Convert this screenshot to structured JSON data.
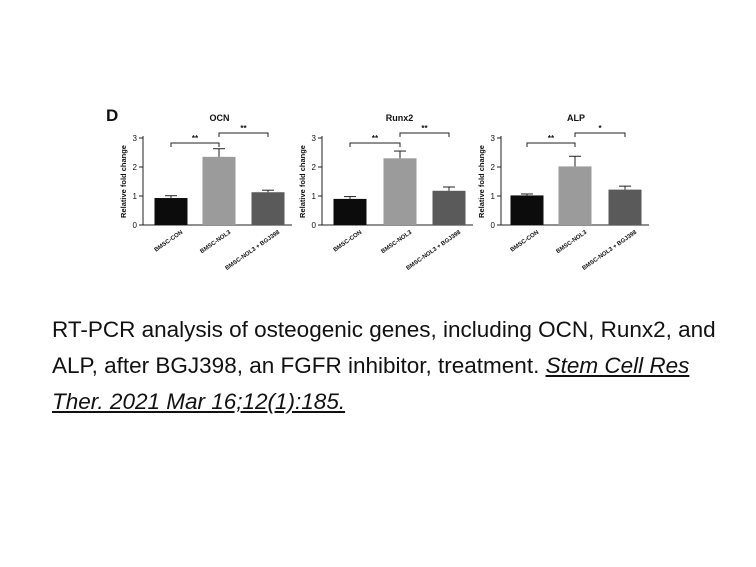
{
  "panel_letter": "D",
  "chart_data": [
    {
      "type": "bar",
      "title": "OCN",
      "ylabel": "Relative  fold change",
      "ylim": [
        0,
        3
      ],
      "yticks": [
        0,
        1,
        2,
        3
      ],
      "categories": [
        "BMSC-CON",
        "BMSC-NOL3",
        "BMSC-NOL3 + BGJ398"
      ],
      "values": [
        0.93,
        2.35,
        1.13
      ],
      "errors": [
        0.08,
        0.28,
        0.07
      ],
      "colors": [
        "#0c0c0c",
        "#9b9b9b",
        "#5a5a5a"
      ],
      "significance": [
        {
          "from": 0,
          "to": 1,
          "label": "**"
        },
        {
          "from": 1,
          "to": 2,
          "label": "**"
        }
      ]
    },
    {
      "type": "bar",
      "title": "Runx2",
      "ylabel": "Relative  fold change",
      "ylim": [
        0,
        3
      ],
      "yticks": [
        0,
        1,
        2,
        3
      ],
      "categories": [
        "BMSC-CON",
        "BMSC-NOL3",
        "BMSC-NOL3 + BGJ398"
      ],
      "values": [
        0.9,
        2.3,
        1.18
      ],
      "errors": [
        0.08,
        0.25,
        0.13
      ],
      "colors": [
        "#0c0c0c",
        "#9b9b9b",
        "#5a5a5a"
      ],
      "significance": [
        {
          "from": 0,
          "to": 1,
          "label": "**"
        },
        {
          "from": 1,
          "to": 2,
          "label": "**"
        }
      ]
    },
    {
      "type": "bar",
      "title": "ALP",
      "ylabel": "Relative  fold change",
      "ylim": [
        0,
        3
      ],
      "yticks": [
        0,
        1,
        2,
        3
      ],
      "categories": [
        "BMSC-CON",
        "BMSC-NOL3",
        "BMSC-NOL3 + BGJ398"
      ],
      "values": [
        1.02,
        2.02,
        1.22
      ],
      "errors": [
        0.05,
        0.35,
        0.12
      ],
      "colors": [
        "#0c0c0c",
        "#9b9b9b",
        "#5a5a5a"
      ],
      "significance": [
        {
          "from": 0,
          "to": 1,
          "label": "**"
        },
        {
          "from": 1,
          "to": 2,
          "label": "*"
        }
      ]
    }
  ],
  "caption": {
    "text": "RT-PCR analysis of osteogenic genes, including OCN, Runx2, and ALP, after BGJ398, an FGFR inhibitor, treatment. ",
    "reference": "Stem Cell Res Ther. 2021 Mar 16;12(1):185."
  }
}
